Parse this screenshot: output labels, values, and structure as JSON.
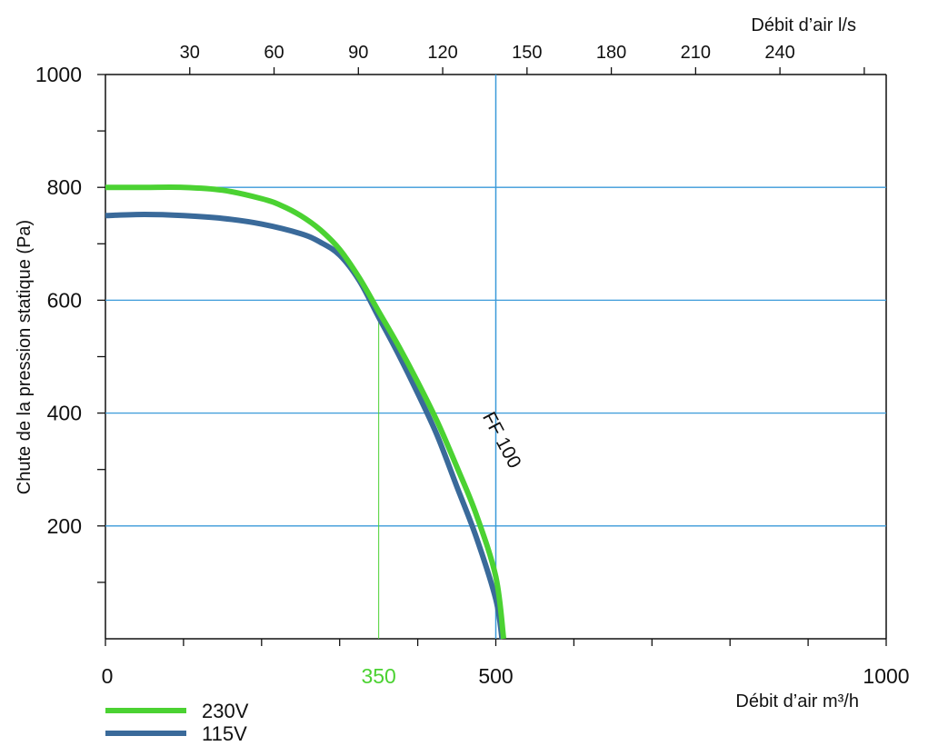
{
  "chart_data": {
    "type": "line",
    "title": "",
    "x_bottom": {
      "label": "Débit d’air m³/h",
      "range": [
        0,
        1000
      ],
      "ticks": [
        0,
        100,
        200,
        300,
        400,
        500,
        600,
        700,
        800,
        900,
        1000
      ],
      "tick_labels": [
        {
          "value": 0,
          "text": "0"
        },
        {
          "value": 350,
          "text": "350",
          "color": "#4bd232"
        },
        {
          "value": 500,
          "text": "500"
        },
        {
          "value": 1000,
          "text": "1000"
        }
      ]
    },
    "x_top": {
      "label": "Débit d’air l/s",
      "range": [
        0,
        277.8
      ],
      "ticks": [
        30,
        60,
        90,
        120,
        150,
        180,
        210,
        240,
        270
      ],
      "tick_labels": [
        "30",
        "60",
        "90",
        "120",
        "150",
        "180",
        "210",
        "240"
      ]
    },
    "y": {
      "label": "Chute de la pression statique (Pa)",
      "range": [
        0,
        1000
      ],
      "minor_ticks": [
        100,
        200,
        300,
        400,
        500,
        600,
        700,
        800,
        900,
        1000
      ],
      "tick_labels": [
        "200",
        "400",
        "600",
        "800",
        "1000"
      ],
      "gridlines": [
        200,
        400,
        600,
        800
      ],
      "grid_color": "#3a9ad9"
    },
    "reference_lines": [
      {
        "axis": "x",
        "value": 500,
        "color": "#3a9ad9"
      },
      {
        "axis": "x",
        "value": 350,
        "color": "#4bd232",
        "y_to": 570
      }
    ],
    "annotation": {
      "text": "FF 100",
      "x": 425,
      "y": 360
    },
    "legend_position": "bottom-left",
    "series": [
      {
        "name": "230V",
        "color": "#4bd232",
        "x": [
          0,
          50,
          100,
          150,
          200,
          225,
          250,
          275,
          300,
          325,
          350,
          375,
          400,
          425,
          450,
          475,
          500,
          510
        ],
        "y": [
          800,
          800,
          800,
          795,
          780,
          768,
          750,
          725,
          690,
          640,
          580,
          520,
          455,
          385,
          305,
          220,
          110,
          0
        ]
      },
      {
        "name": "115V",
        "color": "#3a6a9a",
        "x": [
          0,
          50,
          100,
          150,
          200,
          250,
          275,
          300,
          325,
          350,
          375,
          400,
          425,
          450,
          475,
          500,
          508
        ],
        "y": [
          750,
          752,
          750,
          745,
          735,
          718,
          703,
          680,
          635,
          570,
          505,
          435,
          360,
          270,
          180,
          70,
          0
        ]
      }
    ]
  }
}
